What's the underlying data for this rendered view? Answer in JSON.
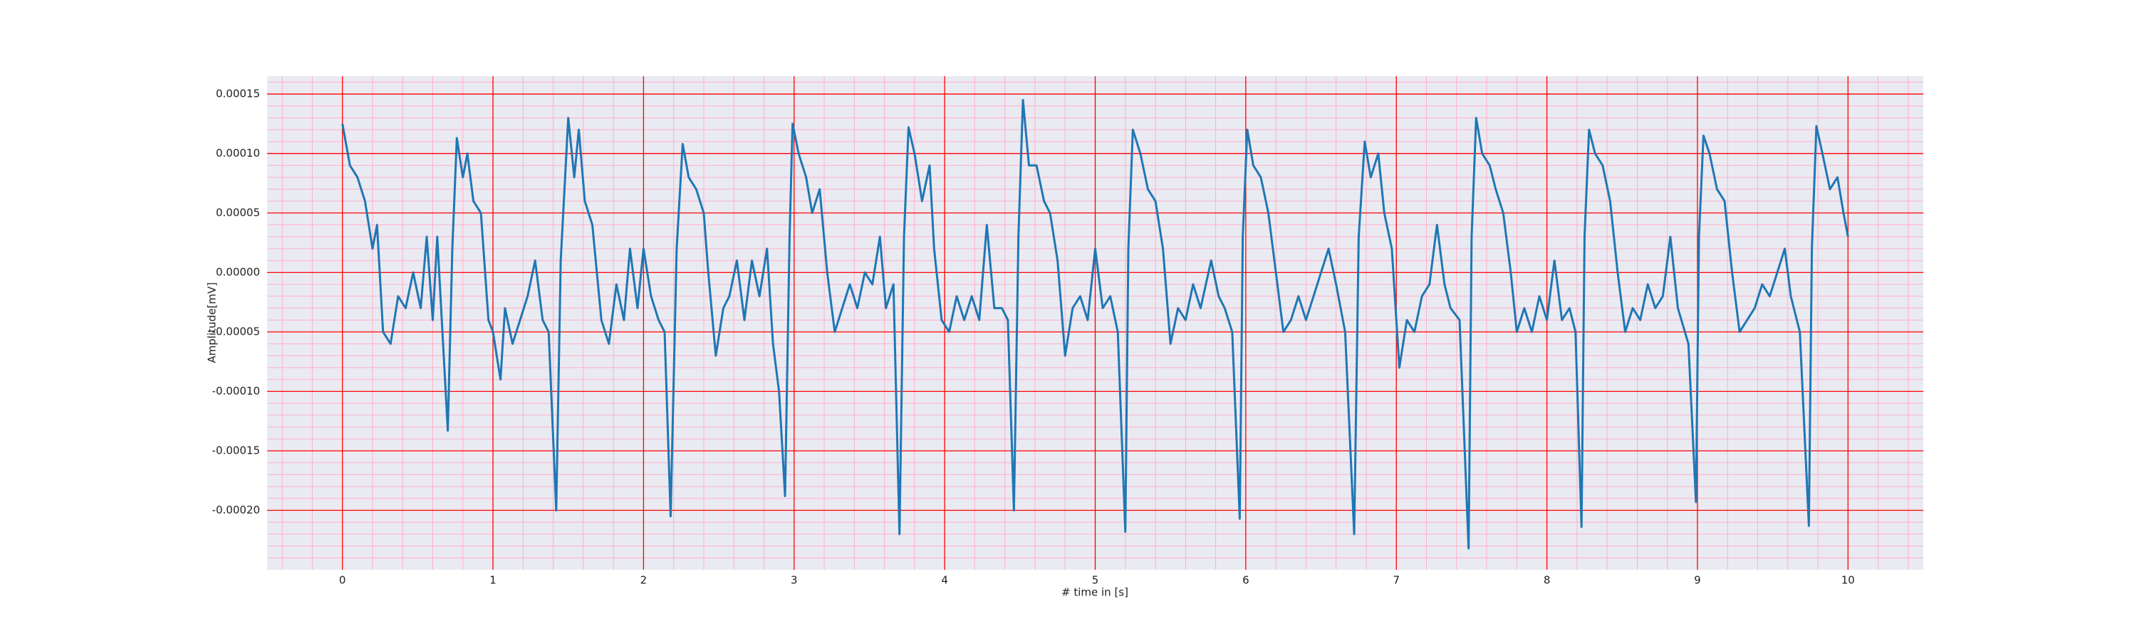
{
  "chart_data": {
    "type": "line",
    "xlabel": "# time in [s]",
    "ylabel": "Amplitude[mV]",
    "xlim": [
      -0.5,
      10.5
    ],
    "ylim": [
      -0.00025,
      0.000165
    ],
    "xticks": [
      0,
      1,
      2,
      3,
      4,
      5,
      6,
      7,
      8,
      9,
      10
    ],
    "yticks": [
      0.00015,
      {
        "value": 0.0001,
        "label": "0.00010"
      },
      5e-05,
      {
        "value": 0,
        "label": "0.00000"
      },
      -5e-05,
      {
        "value": -0.0001,
        "label": "-0.00010"
      },
      -0.00015,
      {
        "value": -0.0002,
        "label": "-0.00020"
      }
    ],
    "grid": true,
    "grid_color": "#ff0000",
    "minor_grid": true,
    "minor_divisions": 5,
    "minor_grid_color": "#ffb0c8",
    "background": "#eaeaf2",
    "x": [
      0,
      0.05,
      0.1,
      0.15,
      0.2,
      0.23,
      0.27,
      0.32,
      0.37,
      0.42,
      0.47,
      0.52,
      0.56,
      0.6,
      0.63,
      0.66,
      0.7,
      0.73,
      0.76,
      0.8,
      0.83,
      0.87,
      0.92,
      0.97,
      1.0,
      1.05,
      1.08,
      1.13,
      1.18,
      1.23,
      1.28,
      1.33,
      1.37,
      1.42,
      1.45,
      1.5,
      1.54,
      1.57,
      1.61,
      1.66,
      1.72,
      1.77,
      1.82,
      1.87,
      1.91,
      1.96,
      2.0,
      2.05,
      2.1,
      2.14,
      2.18,
      2.22,
      2.26,
      2.3,
      2.35,
      2.4,
      2.43,
      2.48,
      2.53,
      2.57,
      2.62,
      2.67,
      2.72,
      2.77,
      2.82,
      2.86,
      2.9,
      2.94,
      2.97,
      2.99,
      3.03,
      3.08,
      3.12,
      3.17,
      3.22,
      3.27,
      3.32,
      3.37,
      3.42,
      3.47,
      3.52,
      3.57,
      3.61,
      3.66,
      3.7,
      3.73,
      3.76,
      3.8,
      3.85,
      3.9,
      3.93,
      3.98,
      4.03,
      4.08,
      4.13,
      4.18,
      4.23,
      4.28,
      4.33,
      4.38,
      4.42,
      4.46,
      4.49,
      4.52,
      4.56,
      4.61,
      4.66,
      4.7,
      4.75,
      4.8,
      4.85,
      4.9,
      4.95,
      5.0,
      5.05,
      5.1,
      5.15,
      5.2,
      5.22,
      5.25,
      5.3,
      5.35,
      5.4,
      5.45,
      5.5,
      5.55,
      5.6,
      5.65,
      5.7,
      5.77,
      5.82,
      5.86,
      5.91,
      5.96,
      5.98,
      6.01,
      6.05,
      6.1,
      6.15,
      6.2,
      6.25,
      6.3,
      6.35,
      6.4,
      6.45,
      6.5,
      6.55,
      6.6,
      6.66,
      6.72,
      6.75,
      6.79,
      6.83,
      6.88,
      6.92,
      6.97,
      7.02,
      7.07,
      7.12,
      7.17,
      7.22,
      7.27,
      7.32,
      7.36,
      7.42,
      7.48,
      7.5,
      7.53,
      7.57,
      7.62,
      7.66,
      7.71,
      7.76,
      7.8,
      7.85,
      7.9,
      7.95,
      8.0,
      8.05,
      8.1,
      8.15,
      8.19,
      8.23,
      8.25,
      8.28,
      8.32,
      8.37,
      8.42,
      8.47,
      8.52,
      8.57,
      8.62,
      8.67,
      8.72,
      8.77,
      8.82,
      8.87,
      8.94,
      8.99,
      9.01,
      9.04,
      9.08,
      9.13,
      9.18,
      9.23,
      9.28,
      9.33,
      9.38,
      9.43,
      9.48,
      9.53,
      9.58,
      9.62,
      9.68,
      9.74,
      9.76,
      9.79,
      9.83,
      9.88,
      9.93,
      9.97,
      10.0
    ],
    "series": [
      {
        "color": "#1f77b4",
        "values": [
          0.000125,
          9e-05,
          8e-05,
          6e-05,
          2e-05,
          4e-05,
          -5e-05,
          -6e-05,
          -2e-05,
          -3e-05,
          0,
          -3e-05,
          3e-05,
          -4e-05,
          3e-05,
          -4e-05,
          -0.000133,
          2e-05,
          0.000113,
          8e-05,
          0.0001,
          6e-05,
          5e-05,
          -4e-05,
          -5e-05,
          -9e-05,
          -3e-05,
          -6e-05,
          -4e-05,
          -2e-05,
          1e-05,
          -4e-05,
          -5e-05,
          -0.0002,
          1e-05,
          0.00013,
          8e-05,
          0.00012,
          6e-05,
          4e-05,
          -4e-05,
          -6e-05,
          -1e-05,
          -4e-05,
          2e-05,
          -3e-05,
          2e-05,
          -2e-05,
          -4e-05,
          -5e-05,
          -0.000205,
          2e-05,
          0.000108,
          8e-05,
          7e-05,
          5e-05,
          0,
          -7e-05,
          -3e-05,
          -2e-05,
          1e-05,
          -4e-05,
          1e-05,
          -2e-05,
          2e-05,
          -6e-05,
          -0.0001,
          -0.000188,
          3e-05,
          0.000125,
          0.0001,
          8e-05,
          5e-05,
          7e-05,
          0,
          -5e-05,
          -3e-05,
          -1e-05,
          -3e-05,
          0,
          -1e-05,
          3e-05,
          -3e-05,
          -1e-05,
          -0.00022,
          3e-05,
          0.000122,
          0.0001,
          6e-05,
          9e-05,
          2e-05,
          -4e-05,
          -5e-05,
          -2e-05,
          -4e-05,
          -2e-05,
          -4e-05,
          4e-05,
          -3e-05,
          -3e-05,
          -4e-05,
          -0.0002,
          3e-05,
          0.000145,
          9e-05,
          9e-05,
          6e-05,
          5e-05,
          1e-05,
          -7e-05,
          -3e-05,
          -2e-05,
          -4e-05,
          2e-05,
          -3e-05,
          -2e-05,
          -5e-05,
          -0.000218,
          2e-05,
          0.00012,
          0.0001,
          7e-05,
          6e-05,
          2e-05,
          -6e-05,
          -3e-05,
          -4e-05,
          -1e-05,
          -3e-05,
          1e-05,
          -2e-05,
          -3e-05,
          -5e-05,
          -0.000207,
          3e-05,
          0.00012,
          9e-05,
          8e-05,
          5e-05,
          0,
          -5e-05,
          -4e-05,
          -2e-05,
          -4e-05,
          -2e-05,
          0,
          2e-05,
          -1e-05,
          -5e-05,
          -0.00022,
          3e-05,
          0.00011,
          8e-05,
          0.0001,
          5e-05,
          2e-05,
          -8e-05,
          -4e-05,
          -5e-05,
          -2e-05,
          -1e-05,
          4e-05,
          -1e-05,
          -3e-05,
          -4e-05,
          -0.000232,
          3e-05,
          0.00013,
          0.0001,
          9e-05,
          7e-05,
          5e-05,
          0,
          -5e-05,
          -3e-05,
          -5e-05,
          -2e-05,
          -4e-05,
          1e-05,
          -4e-05,
          -3e-05,
          -5e-05,
          -0.000214,
          3e-05,
          0.00012,
          0.0001,
          9e-05,
          6e-05,
          0,
          -5e-05,
          -3e-05,
          -4e-05,
          -1e-05,
          -3e-05,
          -2e-05,
          3e-05,
          -3e-05,
          -6e-05,
          -0.000193,
          3e-05,
          0.000115,
          0.0001,
          7e-05,
          6e-05,
          0,
          -5e-05,
          -4e-05,
          -3e-05,
          -1e-05,
          -2e-05,
          0,
          2e-05,
          -2e-05,
          -5e-05,
          -0.000213,
          2e-05,
          0.000123,
          0.0001,
          7e-05,
          8e-05,
          5e-05,
          3e-05
        ]
      }
    ]
  }
}
